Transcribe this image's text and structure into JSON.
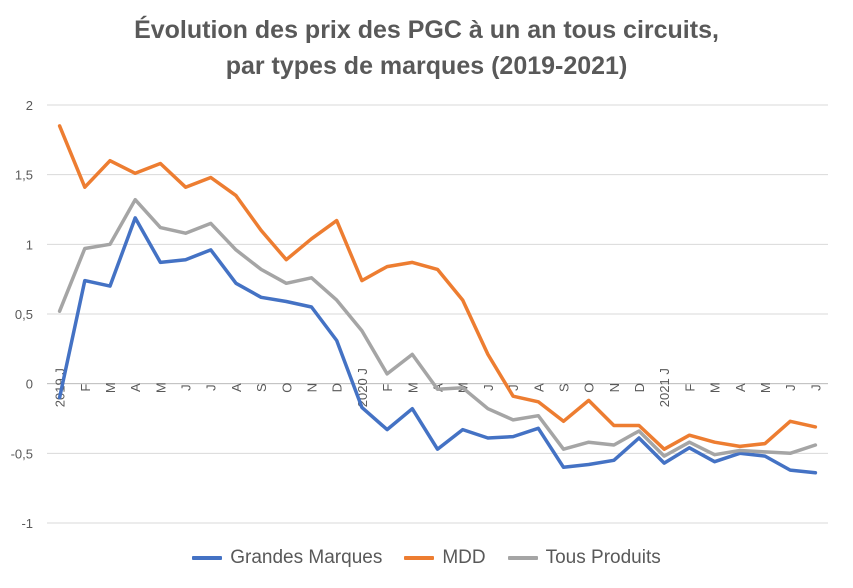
{
  "chart_data": {
    "type": "line",
    "title_line1": "Évolution des prix des PGC à un an tous circuits,",
    "title_line2": "par types de marques (2019-2021)",
    "xlabel": "",
    "ylabel": "",
    "ylim": [
      -1,
      2
    ],
    "yticks": [
      "2",
      "1,5",
      "1",
      "0,5",
      "0",
      "-0,5",
      "-1"
    ],
    "ytick_values": [
      2,
      1.5,
      1,
      0.5,
      0,
      -0.5,
      -1
    ],
    "x_labels": [
      "2019 J",
      "F",
      "M",
      "A",
      "M",
      "J",
      "J",
      "A",
      "S",
      "O",
      "N",
      "D",
      "2020 J",
      "F",
      "M",
      "A",
      "M",
      "J",
      "J",
      "A",
      "S",
      "O",
      "N",
      "D",
      "2021 J",
      "F",
      "M",
      "A",
      "M",
      "J",
      "J"
    ],
    "grid": true,
    "legend_position": "bottom",
    "series": [
      {
        "name": "Grandes Marques",
        "color": "#4472C4",
        "values": [
          -0.1,
          0.74,
          0.7,
          1.19,
          0.87,
          0.89,
          0.96,
          0.72,
          0.62,
          0.59,
          0.55,
          0.31,
          -0.17,
          -0.33,
          -0.18,
          -0.47,
          -0.33,
          -0.39,
          -0.38,
          -0.32,
          -0.6,
          -0.58,
          -0.55,
          -0.39,
          -0.57,
          -0.46,
          -0.56,
          -0.5,
          -0.52,
          -0.62,
          -0.64
        ]
      },
      {
        "name": "MDD",
        "color": "#ED7D31",
        "values": [
          1.85,
          1.41,
          1.6,
          1.51,
          1.58,
          1.41,
          1.48,
          1.35,
          1.1,
          0.89,
          1.04,
          1.17,
          0.74,
          0.84,
          0.87,
          0.82,
          0.6,
          0.21,
          -0.09,
          -0.13,
          -0.27,
          -0.12,
          -0.3,
          -0.3,
          -0.47,
          -0.37,
          -0.42,
          -0.45,
          -0.43,
          -0.27,
          -0.31
        ]
      },
      {
        "name": "Tous Produits",
        "color": "#A5A5A5",
        "values": [
          0.52,
          0.97,
          1.0,
          1.32,
          1.12,
          1.08,
          1.15,
          0.96,
          0.82,
          0.72,
          0.76,
          0.6,
          0.38,
          0.07,
          0.21,
          -0.04,
          -0.03,
          -0.18,
          -0.26,
          -0.23,
          -0.47,
          -0.42,
          -0.44,
          -0.34,
          -0.52,
          -0.42,
          -0.51,
          -0.48,
          -0.49,
          -0.5,
          -0.44
        ]
      }
    ]
  }
}
